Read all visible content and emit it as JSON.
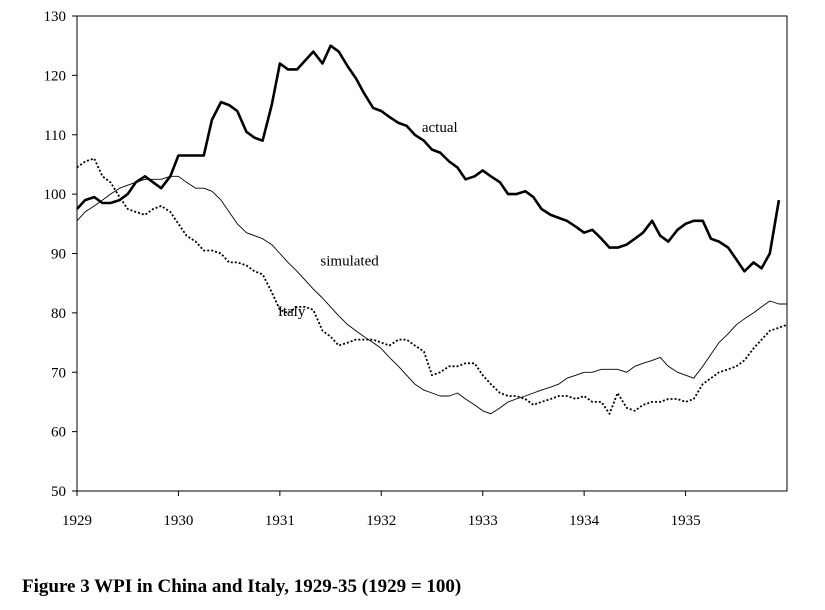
{
  "caption": "Figure 3 WPI in China and Italy, 1929-35 (1929 = 100)",
  "chart_data": {
    "type": "line",
    "title": "Figure 3 WPI in China and Italy, 1929-35 (1929 = 100)",
    "xlabel": "",
    "ylabel": "",
    "xlim": [
      1929.0,
      1936.0
    ],
    "ylim": [
      50,
      130
    ],
    "x_ticks": [
      1929,
      1930,
      1931,
      1932,
      1933,
      1934,
      1935
    ],
    "y_ticks": [
      50,
      60,
      70,
      80,
      90,
      100,
      110,
      120,
      130
    ],
    "grid": false,
    "legend": "none",
    "series": [
      {
        "name": "actual",
        "style": "thick-solid",
        "x": [
          1929.0,
          1929.08,
          1929.17,
          1929.25,
          1929.33,
          1929.42,
          1929.5,
          1929.58,
          1929.67,
          1929.75,
          1929.83,
          1929.92,
          1930.0,
          1930.08,
          1930.17,
          1930.25,
          1930.33,
          1930.42,
          1930.5,
          1930.58,
          1930.67,
          1930.75,
          1930.83,
          1930.92,
          1931.0,
          1931.08,
          1931.17,
          1931.25,
          1931.33,
          1931.42,
          1931.5,
          1931.58,
          1931.67,
          1931.75,
          1931.83,
          1931.92,
          1932.0,
          1932.08,
          1932.17,
          1932.25,
          1932.33,
          1932.42,
          1932.5,
          1932.58,
          1932.67,
          1932.75,
          1932.83,
          1932.92,
          1933.0,
          1933.08,
          1933.17,
          1933.25,
          1933.33,
          1933.42,
          1933.5,
          1933.58,
          1933.67,
          1933.75,
          1933.83,
          1933.92,
          1934.0,
          1934.08,
          1934.17,
          1934.25,
          1934.33,
          1934.42,
          1934.5,
          1934.58,
          1934.67,
          1934.75,
          1934.83,
          1934.92,
          1935.0,
          1935.08,
          1935.17,
          1935.25,
          1935.33,
          1935.42,
          1935.5,
          1935.58,
          1935.67,
          1935.75,
          1935.83,
          1935.92
        ],
        "values": [
          97.5,
          99.0,
          99.5,
          98.5,
          98.5,
          99.0,
          100.0,
          102.0,
          103.0,
          102.0,
          101.0,
          103.0,
          106.5,
          106.5,
          106.5,
          106.5,
          112.5,
          115.5,
          115.0,
          114.0,
          110.5,
          109.5,
          109.0,
          115.0,
          122.0,
          121.0,
          121.0,
          122.5,
          124.0,
          122.0,
          125.0,
          124.0,
          121.5,
          119.5,
          117.0,
          114.5,
          114.0,
          113.0,
          112.0,
          111.5,
          110.0,
          109.0,
          107.5,
          107.0,
          105.5,
          104.5,
          102.5,
          103.0,
          104.0,
          103.0,
          102.0,
          100.0,
          100.0,
          100.5,
          99.5,
          97.5,
          96.5,
          96.0,
          95.5,
          94.5,
          93.5,
          94.0,
          92.5,
          91.0,
          91.0,
          91.5,
          92.5,
          93.5,
          95.5,
          93.0,
          92.0,
          94.0,
          95.0,
          95.5,
          95.5,
          92.5,
          92.0,
          91.0,
          89.0,
          87.0,
          88.5,
          87.5,
          90.0,
          99.0
        ]
      },
      {
        "name": "simulated",
        "style": "thin-solid",
        "x": [
          1929.0,
          1929.08,
          1929.17,
          1929.25,
          1929.33,
          1929.42,
          1929.5,
          1929.58,
          1929.67,
          1929.75,
          1929.83,
          1929.92,
          1930.0,
          1930.08,
          1930.17,
          1930.25,
          1930.33,
          1930.42,
          1930.5,
          1930.58,
          1930.67,
          1930.75,
          1930.83,
          1930.92,
          1931.0,
          1931.08,
          1931.17,
          1931.25,
          1931.33,
          1931.42,
          1931.5,
          1931.58,
          1931.67,
          1931.75,
          1931.83,
          1931.92,
          1932.0,
          1932.08,
          1932.17,
          1932.25,
          1932.33,
          1932.42,
          1932.5,
          1932.58,
          1932.67,
          1932.75,
          1932.83,
          1932.92,
          1933.0,
          1933.08,
          1933.17,
          1933.25,
          1933.33,
          1933.42,
          1933.5,
          1933.58,
          1933.67,
          1933.75,
          1933.83,
          1933.92,
          1934.0,
          1934.08,
          1934.17,
          1934.25,
          1934.33,
          1934.42,
          1934.5,
          1934.58,
          1934.67,
          1934.75,
          1934.83,
          1934.92,
          1935.0,
          1935.08,
          1935.17,
          1935.25,
          1935.33,
          1935.42,
          1935.5,
          1935.58,
          1935.67,
          1935.75,
          1935.83,
          1935.92,
          1936.0
        ],
        "values": [
          95.5,
          97.0,
          98.0,
          99.0,
          100.0,
          101.0,
          101.5,
          102.0,
          102.5,
          102.5,
          102.5,
          103.0,
          103.0,
          102.0,
          101.0,
          101.0,
          100.5,
          99.0,
          97.0,
          95.0,
          93.5,
          93.0,
          92.5,
          91.5,
          90.0,
          88.5,
          87.0,
          85.5,
          84.0,
          82.5,
          81.0,
          79.5,
          78.0,
          77.0,
          76.0,
          75.0,
          74.0,
          72.5,
          71.0,
          69.5,
          68.0,
          67.0,
          66.5,
          66.0,
          66.0,
          66.5,
          65.5,
          64.5,
          63.5,
          63.0,
          64.0,
          65.0,
          65.5,
          66.0,
          66.5,
          67.0,
          67.5,
          68.0,
          69.0,
          69.5,
          70.0,
          70.0,
          70.5,
          70.5,
          70.5,
          70.0,
          71.0,
          71.5,
          72.0,
          72.5,
          71.0,
          70.0,
          69.5,
          69.0,
          71.0,
          73.0,
          75.0,
          76.5,
          78.0,
          79.0,
          80.0,
          81.0,
          82.0,
          81.5,
          81.5
        ]
      },
      {
        "name": "Italy",
        "style": "dotted",
        "x": [
          1929.0,
          1929.08,
          1929.17,
          1929.25,
          1929.33,
          1929.42,
          1929.5,
          1929.58,
          1929.67,
          1929.75,
          1929.83,
          1929.92,
          1930.0,
          1930.08,
          1930.17,
          1930.25,
          1930.33,
          1930.42,
          1930.5,
          1930.58,
          1930.67,
          1930.75,
          1930.83,
          1930.92,
          1931.0,
          1931.08,
          1931.17,
          1931.25,
          1931.33,
          1931.42,
          1931.5,
          1931.58,
          1931.67,
          1931.75,
          1931.83,
          1931.92,
          1932.0,
          1932.08,
          1932.17,
          1932.25,
          1932.33,
          1932.42,
          1932.5,
          1932.58,
          1932.67,
          1932.75,
          1932.83,
          1932.92,
          1933.0,
          1933.08,
          1933.17,
          1933.25,
          1933.33,
          1933.42,
          1933.5,
          1933.58,
          1933.67,
          1933.75,
          1933.83,
          1933.92,
          1934.0,
          1934.08,
          1934.17,
          1934.25,
          1934.33,
          1934.42,
          1934.5,
          1934.58,
          1934.67,
          1934.75,
          1934.83,
          1934.92,
          1935.0,
          1935.08,
          1935.17,
          1935.25,
          1935.33,
          1935.42,
          1935.5,
          1935.58,
          1935.67,
          1935.75,
          1935.83,
          1935.92,
          1936.0
        ],
        "values": [
          104.5,
          105.5,
          106.0,
          103.0,
          102.0,
          99.5,
          97.5,
          97.0,
          96.5,
          97.5,
          98.0,
          97.0,
          95.0,
          93.0,
          92.0,
          90.5,
          90.5,
          90.0,
          88.5,
          88.5,
          88.0,
          87.0,
          86.5,
          83.5,
          80.5,
          80.0,
          81.0,
          81.0,
          80.5,
          77.0,
          76.0,
          74.5,
          75.0,
          75.5,
          75.5,
          75.5,
          75.0,
          74.5,
          75.5,
          75.5,
          74.5,
          73.5,
          69.5,
          70.0,
          71.0,
          71.0,
          71.5,
          71.5,
          69.5,
          68.0,
          66.5,
          66.0,
          66.0,
          65.5,
          64.5,
          65.0,
          65.5,
          66.0,
          66.0,
          65.5,
          66.0,
          65.0,
          65.0,
          63.0,
          66.5,
          64.0,
          63.5,
          64.5,
          65.0,
          65.0,
          65.5,
          65.5,
          65.0,
          65.5,
          68.0,
          69.0,
          70.0,
          70.5,
          71.0,
          72.0,
          74.0,
          75.5,
          77.0,
          77.5,
          78.0
        ]
      }
    ],
    "annotations": [
      {
        "text": "actual",
        "x": 1932.4,
        "y": 110.5
      },
      {
        "text": "simulated",
        "x": 1931.4,
        "y": 88.0
      },
      {
        "text": "Italy",
        "x": 1930.98,
        "y": 79.5
      }
    ]
  }
}
